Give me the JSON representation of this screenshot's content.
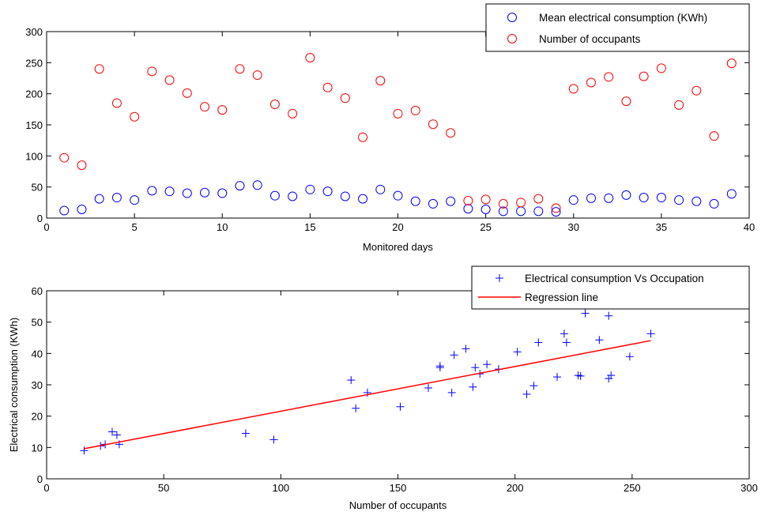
{
  "chart_data": [
    {
      "type": "scatter",
      "title": "",
      "xlabel": "Monitored days",
      "ylabel": "",
      "xlim": [
        0,
        40
      ],
      "ylim": [
        0,
        300
      ],
      "xticks": [
        "0",
        "5",
        "10",
        "15",
        "20",
        "25",
        "30",
        "35",
        "40"
      ],
      "yticks": [
        "0",
        "50",
        "100",
        "150",
        "200",
        "250",
        "300"
      ],
      "grid": false,
      "legend_position": "top-right",
      "series": [
        {
          "name": "Mean electrical consumption (KWh)",
          "color": "#0000ff",
          "marker": "circle",
          "points": [
            [
              1,
              12
            ],
            [
              2,
              14
            ],
            [
              3,
              31
            ],
            [
              4,
              33
            ],
            [
              5,
              29
            ],
            [
              6,
              44
            ],
            [
              7,
              43
            ],
            [
              8,
              40
            ],
            [
              9,
              41
            ],
            [
              10,
              40
            ],
            [
              11,
              52
            ],
            [
              12,
              53
            ],
            [
              13,
              36
            ],
            [
              14,
              35
            ],
            [
              15,
              46
            ],
            [
              16,
              43
            ],
            [
              17,
              35
            ],
            [
              18,
              31
            ],
            [
              19,
              46
            ],
            [
              20,
              36
            ],
            [
              21,
              27
            ],
            [
              22,
              23
            ],
            [
              23,
              27
            ],
            [
              24,
              15
            ],
            [
              25,
              14
            ],
            [
              26,
              11
            ],
            [
              27,
              11
            ],
            [
              28,
              11
            ],
            [
              29,
              10
            ],
            [
              30,
              29
            ],
            [
              31,
              32
            ],
            [
              32,
              32
            ],
            [
              33,
              37
            ],
            [
              34,
              33
            ],
            [
              35,
              33
            ],
            [
              36,
              29
            ],
            [
              37,
              27
            ],
            [
              38,
              23
            ],
            [
              39,
              39
            ]
          ]
        },
        {
          "name": "Number of occupants",
          "color": "#ff0000",
          "marker": "circle",
          "points": [
            [
              1,
              97
            ],
            [
              2,
              85
            ],
            [
              3,
              240
            ],
            [
              4,
              185
            ],
            [
              5,
              163
            ],
            [
              6,
              236
            ],
            [
              7,
              222
            ],
            [
              8,
              201
            ],
            [
              9,
              179
            ],
            [
              10,
              174
            ],
            [
              11,
              240
            ],
            [
              12,
              230
            ],
            [
              13,
              183
            ],
            [
              14,
              168
            ],
            [
              15,
              258
            ],
            [
              16,
              210
            ],
            [
              17,
              193
            ],
            [
              18,
              130
            ],
            [
              19,
              221
            ],
            [
              20,
              168
            ],
            [
              21,
              173
            ],
            [
              22,
              151
            ],
            [
              23,
              137
            ],
            [
              24,
              28
            ],
            [
              25,
              30
            ],
            [
              26,
              23
            ],
            [
              27,
              25
            ],
            [
              28,
              31
            ],
            [
              29,
              16
            ],
            [
              30,
              208
            ],
            [
              31,
              218
            ],
            [
              32,
              227
            ],
            [
              33,
              188
            ],
            [
              34,
              228
            ],
            [
              35,
              241
            ],
            [
              36,
              182
            ],
            [
              37,
              205
            ],
            [
              38,
              132
            ],
            [
              39,
              249
            ]
          ]
        }
      ]
    },
    {
      "type": "scatter",
      "title": "",
      "xlabel": "Number of occupants",
      "ylabel": "Electrical consumption (KWh)",
      "xlim": [
        0,
        300
      ],
      "ylim": [
        0,
        60
      ],
      "xticks": [
        "0",
        "50",
        "100",
        "150",
        "200",
        "250",
        "300"
      ],
      "yticks": [
        "0",
        "10",
        "20",
        "30",
        "40",
        "50",
        "60"
      ],
      "grid": false,
      "legend_position": "top-right",
      "series": [
        {
          "name": "Electrical consumption Vs Occupation",
          "color": "#0000ff",
          "marker": "plus",
          "points": [
            [
              16,
              9
            ],
            [
              23,
              10.5
            ],
            [
              25,
              11
            ],
            [
              28,
              15
            ],
            [
              30,
              14
            ],
            [
              31,
              11
            ],
            [
              85,
              14.5
            ],
            [
              97,
              12.5
            ],
            [
              130,
              31.5
            ],
            [
              132,
              22.5
            ],
            [
              137,
              27.5
            ],
            [
              151,
              23
            ],
            [
              163,
              29
            ],
            [
              168,
              36
            ],
            [
              168,
              35.5
            ],
            [
              173,
              27.5
            ],
            [
              174,
              39.5
            ],
            [
              179,
              41.5
            ],
            [
              182,
              29.3
            ],
            [
              183,
              35.5
            ],
            [
              185,
              33.5
            ],
            [
              188,
              36.5
            ],
            [
              193,
              35
            ],
            [
              201,
              40.5
            ],
            [
              205,
              27
            ],
            [
              208,
              29.7
            ],
            [
              210,
              43.5
            ],
            [
              218,
              32.5
            ],
            [
              221,
              46.3
            ],
            [
              222,
              43.5
            ],
            [
              227,
              33
            ],
            [
              228,
              32.8
            ],
            [
              230,
              52.8
            ],
            [
              236,
              44.3
            ],
            [
              240,
              32
            ],
            [
              240,
              52
            ],
            [
              241,
              33
            ],
            [
              249,
              39
            ],
            [
              258,
              46.3
            ]
          ]
        },
        {
          "name": "Regression line",
          "color": "#ff0000",
          "marker": "line",
          "points": [
            [
              16,
              9.6
            ],
            [
              258,
              44.1
            ]
          ]
        }
      ]
    }
  ]
}
